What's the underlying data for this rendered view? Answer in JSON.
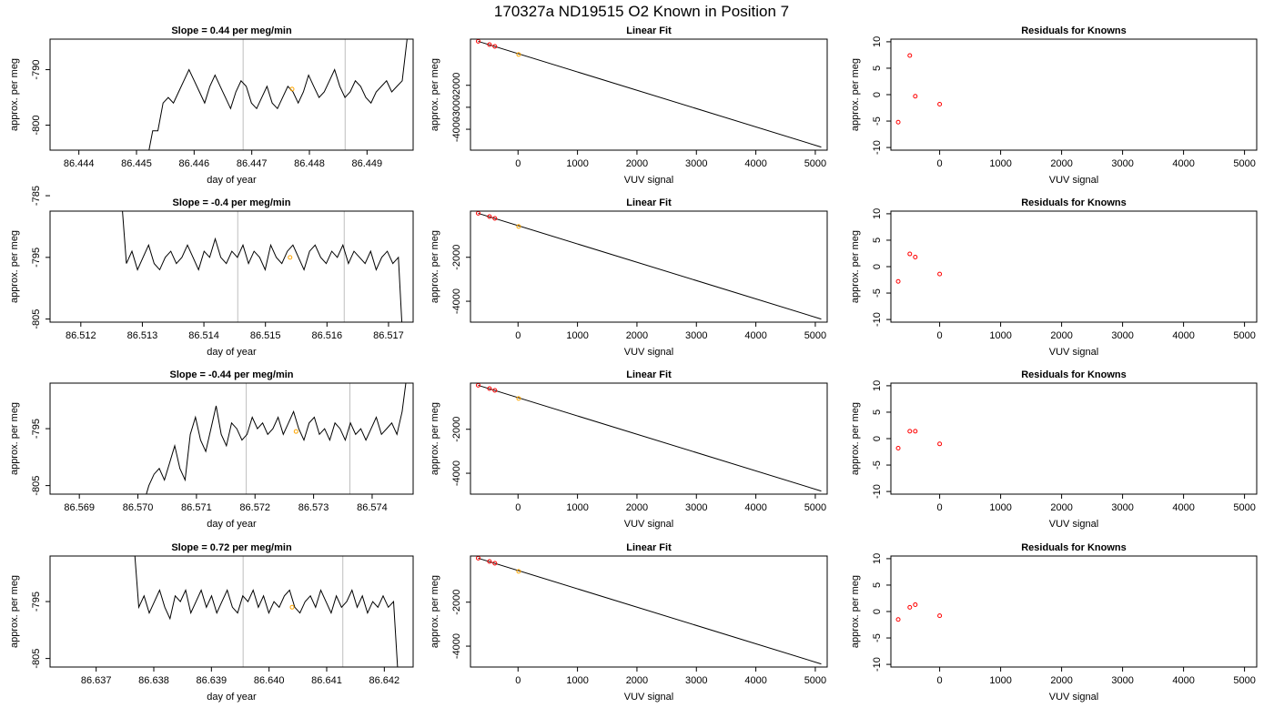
{
  "figure": {
    "title": "170327a     ND19515   O2 Known in Position  7"
  },
  "colors": {
    "series": "#000000",
    "bracket": "#bebebe",
    "known_point": "#ffa500",
    "residual_point": "#ff0000"
  },
  "chart_data": [
    {
      "type": "line",
      "title": "Slope =  0.44  per meg/min",
      "xlabel": "day of year",
      "ylabel": "approx. per meg",
      "xlim": [
        86.4435,
        86.4498
      ],
      "ylim": [
        -804.5,
        -784.5
      ],
      "xticks": [
        "86.444",
        "86.445",
        "86.446",
        "86.447",
        "86.448",
        "86.449"
      ],
      "xtick_values": [
        86.444,
        86.445,
        86.446,
        86.447,
        86.448,
        86.449
      ],
      "yticks": [
        "-790",
        "-800"
      ],
      "ytick_values": [
        -790,
        -800
      ],
      "x_start": 86.4451,
      "x_end": 86.4497,
      "y_series": [
        -809,
        -806,
        -801,
        -801,
        -796,
        -795,
        -796,
        -794,
        -792,
        -790,
        -792,
        -794,
        -796,
        -793,
        -791,
        -793,
        -795,
        -797,
        -794,
        -792,
        -793,
        -796,
        -797,
        -795,
        -793,
        -796,
        -797,
        -795,
        -793,
        -794,
        -796,
        -794,
        -791,
        -793,
        -795,
        -794,
        -792,
        -790,
        -793,
        -795,
        -794,
        -792,
        -793,
        -795,
        -796,
        -794,
        -793,
        -792,
        -794,
        -793,
        -792,
        -784
      ],
      "vlines": [
        86.44685,
        86.44862
      ],
      "marker": {
        "x": 86.4477,
        "y": -793.5
      }
    },
    {
      "type": "scatter",
      "title": "Linear Fit",
      "xlabel": "VUV signal",
      "ylabel": "approx. per meg",
      "xlim": [
        -800,
        5200
      ],
      "ylim": [
        -4950,
        100
      ],
      "xticks": [
        "0",
        "1000",
        "2000",
        "3000",
        "4000",
        "5000"
      ],
      "xtick_values": [
        0,
        1000,
        2000,
        3000,
        4000,
        5000
      ],
      "yticks": [
        "-2000",
        "-3000",
        "-4000"
      ],
      "ytick_values": [
        -2000,
        -3000,
        -4000
      ],
      "points": [
        [
          -670,
          0
        ],
        [
          -480,
          -150
        ],
        [
          -390,
          -230
        ],
        [
          10,
          -600
        ]
      ],
      "fit_line": [
        [
          -670,
          0
        ],
        [
          5100,
          -4810
        ]
      ]
    },
    {
      "type": "scatter",
      "title": "Residuals for Knowns",
      "xlabel": "VUV signal",
      "ylabel": "approx. per meg",
      "xlim": [
        -800,
        5200
      ],
      "ylim": [
        -10.5,
        10.5
      ],
      "xticks": [
        "0",
        "1000",
        "2000",
        "3000",
        "4000",
        "5000"
      ],
      "xtick_values": [
        0,
        1000,
        2000,
        3000,
        4000,
        5000
      ],
      "yticks": [
        "10",
        "5",
        "0",
        "-5",
        "-10"
      ],
      "ytick_values": [
        10,
        5,
        0,
        -5,
        -10
      ],
      "points": [
        [
          -680,
          -5.2
        ],
        [
          -490,
          7.4
        ],
        [
          -400,
          -0.3
        ],
        [
          0,
          -1.8
        ]
      ]
    },
    {
      "type": "line",
      "title": "Slope =  -0.4  per meg/min",
      "xlabel": "day of year",
      "ylabel": "approx. per meg",
      "xlim": [
        86.5115,
        86.5174
      ],
      "ylim": [
        -805.5,
        -787.5
      ],
      "xticks": [
        "86.512",
        "86.513",
        "86.514",
        "86.515",
        "86.516",
        "86.517"
      ],
      "xtick_values": [
        86.512,
        86.513,
        86.514,
        86.515,
        86.516,
        86.517
      ],
      "yticks": [
        "-785",
        "-795",
        "-805"
      ],
      "ytick_values": [
        -785,
        -795,
        -805
      ],
      "x_start": 86.51265,
      "x_end": 86.51725,
      "y_series": [
        -784,
        -796,
        -794,
        -797,
        -795,
        -793,
        -796,
        -797,
        -795,
        -794,
        -796,
        -795,
        -793,
        -795,
        -797,
        -794,
        -795,
        -792,
        -795,
        -796,
        -794,
        -795,
        -793,
        -796,
        -794,
        -795,
        -797,
        -793,
        -795,
        -796,
        -794,
        -793,
        -795,
        -797,
        -794,
        -793,
        -795,
        -796,
        -794,
        -795,
        -793,
        -796,
        -794,
        -795,
        -796,
        -794,
        -797,
        -795,
        -794,
        -796,
        -795,
        -812
      ],
      "vlines": [
        86.51455,
        86.51628
      ],
      "marker": {
        "x": 86.5154,
        "y": -795
      }
    },
    {
      "type": "scatter",
      "title": "Linear Fit",
      "xlabel": "VUV signal",
      "ylabel": "approx. per meg",
      "xlim": [
        -800,
        5200
      ],
      "ylim": [
        -4950,
        100
      ],
      "xticks": [
        "0",
        "1000",
        "2000",
        "3000",
        "4000",
        "5000"
      ],
      "xtick_values": [
        0,
        1000,
        2000,
        3000,
        4000,
        5000
      ],
      "yticks": [
        "-2000",
        "-4000"
      ],
      "ytick_values": [
        -2000,
        -4000
      ],
      "points": [
        [
          -670,
          0
        ],
        [
          -480,
          -150
        ],
        [
          -390,
          -230
        ],
        [
          10,
          -600
        ]
      ],
      "fit_line": [
        [
          -670,
          0
        ],
        [
          5100,
          -4810
        ]
      ]
    },
    {
      "type": "scatter",
      "title": "Residuals for Knowns",
      "xlabel": "VUV signal",
      "ylabel": "approx. per meg",
      "xlim": [
        -800,
        5200
      ],
      "ylim": [
        -10.5,
        10.5
      ],
      "xticks": [
        "0",
        "1000",
        "2000",
        "3000",
        "4000",
        "5000"
      ],
      "xtick_values": [
        0,
        1000,
        2000,
        3000,
        4000,
        5000
      ],
      "yticks": [
        "10",
        "5",
        "0",
        "-5",
        "-10"
      ],
      "ytick_values": [
        10,
        5,
        0,
        -5,
        -10
      ],
      "points": [
        [
          -680,
          -2.8
        ],
        [
          -490,
          2.4
        ],
        [
          -400,
          1.8
        ],
        [
          0,
          -1.4
        ]
      ]
    },
    {
      "type": "line",
      "title": "Slope =  -0.44  per meg/min",
      "xlabel": "day of year",
      "ylabel": "approx. per meg",
      "xlim": [
        86.5685,
        86.5747
      ],
      "ylim": [
        -806.5,
        -787
      ],
      "xticks": [
        "86.569",
        "86.570",
        "86.571",
        "86.572",
        "86.573",
        "86.574"
      ],
      "xtick_values": [
        86.569,
        86.57,
        86.571,
        86.572,
        86.573,
        86.574
      ],
      "yticks": [
        "-795",
        "-805"
      ],
      "ytick_values": [
        -795,
        -805
      ],
      "x_start": 86.5701,
      "x_end": 86.5746,
      "y_series": [
        -808,
        -805,
        -803,
        -802,
        -804,
        -801,
        -798,
        -802,
        -804,
        -796,
        -793,
        -797,
        -799,
        -795,
        -791,
        -796,
        -798,
        -794,
        -795,
        -797,
        -796,
        -793,
        -795,
        -794,
        -796,
        -795,
        -793,
        -796,
        -794,
        -792,
        -795,
        -797,
        -794,
        -793,
        -796,
        -795,
        -797,
        -794,
        -795,
        -797,
        -794,
        -796,
        -795,
        -797,
        -795,
        -793,
        -796,
        -795,
        -794,
        -796,
        -792,
        -785
      ],
      "vlines": [
        86.57185,
        86.57362
      ],
      "marker": {
        "x": 86.5727,
        "y": -795.5
      }
    },
    {
      "type": "scatter",
      "title": "Linear Fit",
      "xlabel": "VUV signal",
      "ylabel": "approx. per meg",
      "xlim": [
        -800,
        5200
      ],
      "ylim": [
        -4950,
        100
      ],
      "xticks": [
        "0",
        "1000",
        "2000",
        "3000",
        "4000",
        "5000"
      ],
      "xtick_values": [
        0,
        1000,
        2000,
        3000,
        4000,
        5000
      ],
      "yticks": [
        "-2000",
        "-4000"
      ],
      "ytick_values": [
        -2000,
        -4000
      ],
      "points": [
        [
          -670,
          0
        ],
        [
          -480,
          -150
        ],
        [
          -390,
          -230
        ],
        [
          10,
          -600
        ]
      ],
      "fit_line": [
        [
          -670,
          0
        ],
        [
          5100,
          -4810
        ]
      ]
    },
    {
      "type": "scatter",
      "title": "Residuals for Knowns",
      "xlabel": "VUV signal",
      "ylabel": "approx. per meg",
      "xlim": [
        -800,
        5200
      ],
      "ylim": [
        -10.5,
        10.5
      ],
      "xticks": [
        "0",
        "1000",
        "2000",
        "3000",
        "4000",
        "5000"
      ],
      "xtick_values": [
        0,
        1000,
        2000,
        3000,
        4000,
        5000
      ],
      "yticks": [
        "10",
        "5",
        "0",
        "-5",
        "-10"
      ],
      "ytick_values": [
        10,
        5,
        0,
        -5,
        -10
      ],
      "points": [
        [
          -680,
          -1.8
        ],
        [
          -490,
          1.4
        ],
        [
          -400,
          1.4
        ],
        [
          0,
          -1.0
        ]
      ]
    },
    {
      "type": "line",
      "title": "Slope =  0.72  per meg/min",
      "xlabel": "day of year",
      "ylabel": "approx. per meg",
      "xlim": [
        86.6362,
        86.6425
      ],
      "ylim": [
        -806.5,
        -787
      ],
      "xticks": [
        "86.637",
        "86.638",
        "86.639",
        "86.640",
        "86.641",
        "86.642"
      ],
      "xtick_values": [
        86.637,
        86.638,
        86.639,
        86.64,
        86.641,
        86.642
      ],
      "yticks": [
        "-795",
        "-805"
      ],
      "ytick_values": [
        -795,
        -805
      ],
      "x_start": 86.63765,
      "x_end": 86.64225,
      "y_series": [
        -784,
        -796,
        -794,
        -797,
        -795,
        -793,
        -796,
        -798,
        -794,
        -795,
        -793,
        -797,
        -795,
        -793,
        -796,
        -794,
        -797,
        -795,
        -793,
        -796,
        -797,
        -794,
        -795,
        -793,
        -796,
        -794,
        -797,
        -795,
        -796,
        -794,
        -793,
        -796,
        -797,
        -795,
        -794,
        -796,
        -793,
        -795,
        -797,
        -794,
        -796,
        -795,
        -793,
        -796,
        -794,
        -797,
        -795,
        -796,
        -794,
        -796,
        -795,
        -810
      ],
      "vlines": [
        86.63955,
        86.64128
      ],
      "marker": {
        "x": 86.6404,
        "y": -796
      }
    },
    {
      "type": "scatter",
      "title": "Linear Fit",
      "xlabel": "VUV signal",
      "ylabel": "approx. per meg",
      "xlim": [
        -800,
        5200
      ],
      "ylim": [
        -4950,
        100
      ],
      "xticks": [
        "0",
        "1000",
        "2000",
        "3000",
        "4000",
        "5000"
      ],
      "xtick_values": [
        0,
        1000,
        2000,
        3000,
        4000,
        5000
      ],
      "yticks": [
        "-2000",
        "-4000"
      ],
      "ytick_values": [
        -2000,
        -4000
      ],
      "points": [
        [
          -670,
          0
        ],
        [
          -480,
          -150
        ],
        [
          -390,
          -230
        ],
        [
          10,
          -600
        ]
      ],
      "fit_line": [
        [
          -670,
          0
        ],
        [
          5100,
          -4810
        ]
      ]
    },
    {
      "type": "scatter",
      "title": "Residuals for Knowns",
      "xlabel": "VUV signal",
      "ylabel": "approx. per meg",
      "xlim": [
        -800,
        5200
      ],
      "ylim": [
        -10.5,
        10.5
      ],
      "xticks": [
        "0",
        "1000",
        "2000",
        "3000",
        "4000",
        "5000"
      ],
      "xtick_values": [
        0,
        1000,
        2000,
        3000,
        4000,
        5000
      ],
      "yticks": [
        "10",
        "5",
        "0",
        "-5",
        "-10"
      ],
      "ytick_values": [
        10,
        5,
        0,
        -5,
        -10
      ],
      "points": [
        [
          -680,
          -1.5
        ],
        [
          -490,
          0.8
        ],
        [
          -400,
          1.3
        ],
        [
          0,
          -0.8
        ]
      ]
    }
  ]
}
